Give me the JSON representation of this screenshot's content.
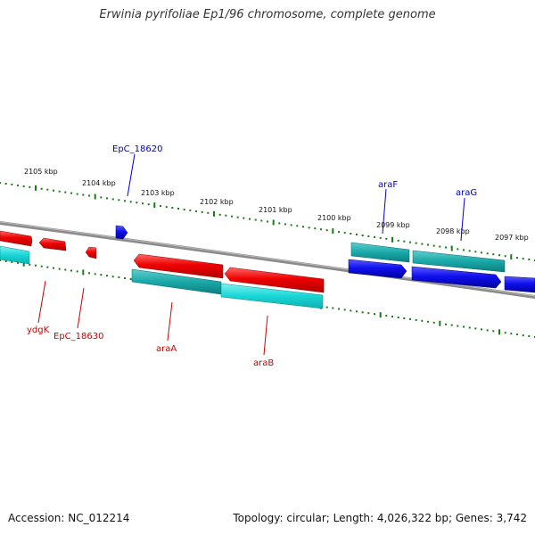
{
  "title": "Erwinia pyrifoliae Ep1/96 chromosome, complete genome",
  "footer": {
    "accession": "Accession: NC_012214",
    "summary": "Topology: circular; Length: 4,026,322 bp; Genes: 3,742"
  },
  "scale_labels": [
    {
      "text": "2105 kbp"
    },
    {
      "text": "2104 kbp"
    },
    {
      "text": "2103 kbp"
    },
    {
      "text": "2102 kbp"
    },
    {
      "text": "2101 kbp"
    },
    {
      "text": "2100 kbp"
    },
    {
      "text": "2099 kbp"
    },
    {
      "text": "2098 kbp"
    },
    {
      "text": "2097 kbp"
    }
  ],
  "gene_labels": [
    {
      "text": "EpC_18620",
      "color": "#0000cc"
    },
    {
      "text": "araF",
      "color": "#0000cc"
    },
    {
      "text": "araG",
      "color": "#0000cc"
    },
    {
      "text": "ydgK",
      "color": "#cc0000"
    },
    {
      "text": "EpC_18630",
      "color": "#cc0000"
    },
    {
      "text": "araA",
      "color": "#cc0000"
    },
    {
      "text": "araB",
      "color": "#cc0000"
    }
  ],
  "colors": {
    "tick": "#1a7a1a",
    "backbone": "#808080",
    "gene_forward_red": "#ee0000",
    "gene_forward_blue": "#1010ee",
    "cds_cyan": "#19d6d6",
    "cds_teal": "#1aa8a8"
  }
}
